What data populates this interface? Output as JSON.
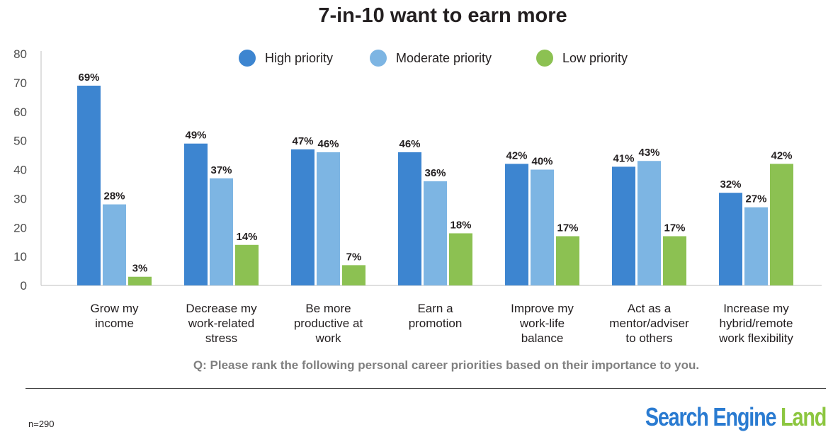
{
  "title": "7-in-10 want to earn more",
  "question": "Q: Please rank the following personal career priorities based on their importance to you.",
  "sample_note": "n=290",
  "logo": {
    "part1": "Search Engine",
    "part2": "Land"
  },
  "colors": {
    "high": "#3d85d0",
    "moderate": "#7db5e3",
    "low": "#8cc152",
    "axis": "#bfbfbf",
    "text": "#231f20"
  },
  "chart_data": {
    "type": "bar",
    "title": "7-in-10 want to earn more",
    "xlabel": "",
    "ylabel": "",
    "ylim": [
      0,
      80
    ],
    "yticks": [
      "0",
      "10",
      "20",
      "30",
      "40",
      "50",
      "60",
      "70",
      "80"
    ],
    "legend_position": "top",
    "categories": [
      [
        "Grow my",
        "income"
      ],
      [
        "Decrease my",
        "work-related",
        "stress"
      ],
      [
        "Be more",
        "productive at",
        "work"
      ],
      [
        "Earn a",
        "promotion"
      ],
      [
        "Improve my",
        "work-life",
        "balance"
      ],
      [
        "Act as a",
        "mentor/adviser",
        "to others"
      ],
      [
        "Increase my",
        "hybrid/remote",
        "work flexibility"
      ]
    ],
    "series": [
      {
        "name": "High priority",
        "color": "#3d85d0",
        "values": [
          69,
          49,
          47,
          46,
          42,
          41,
          32
        ],
        "labels": [
          "69%",
          "49%",
          "47%",
          "46%",
          "42%",
          "41%",
          "32%"
        ]
      },
      {
        "name": "Moderate priority",
        "color": "#7db5e3",
        "values": [
          28,
          37,
          46,
          36,
          40,
          43,
          27
        ],
        "labels": [
          "28%",
          "37%",
          "46%",
          "36%",
          "40%",
          "43%",
          "27%"
        ]
      },
      {
        "name": "Low priority",
        "color": "#8cc152",
        "values": [
          3,
          14,
          7,
          18,
          17,
          17,
          42
        ],
        "labels": [
          "3%",
          "14%",
          "7%",
          "18%",
          "17%",
          "17%",
          "42%"
        ]
      }
    ]
  }
}
